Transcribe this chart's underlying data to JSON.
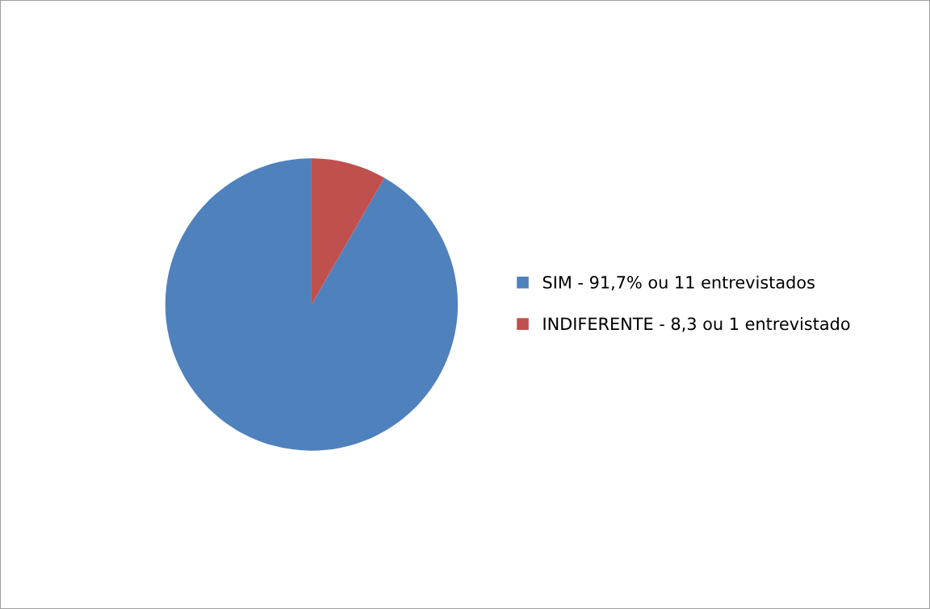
{
  "chart_data": {
    "type": "pie",
    "categories": [
      "SIM - 91,7% ou 11 entrevistados",
      "INDIFERENTE - 8,3 ou 1 entrevistado"
    ],
    "values": [
      91.7,
      8.3
    ],
    "colors": [
      "#4f81bd",
      "#c0504d"
    ],
    "legend": "right"
  }
}
